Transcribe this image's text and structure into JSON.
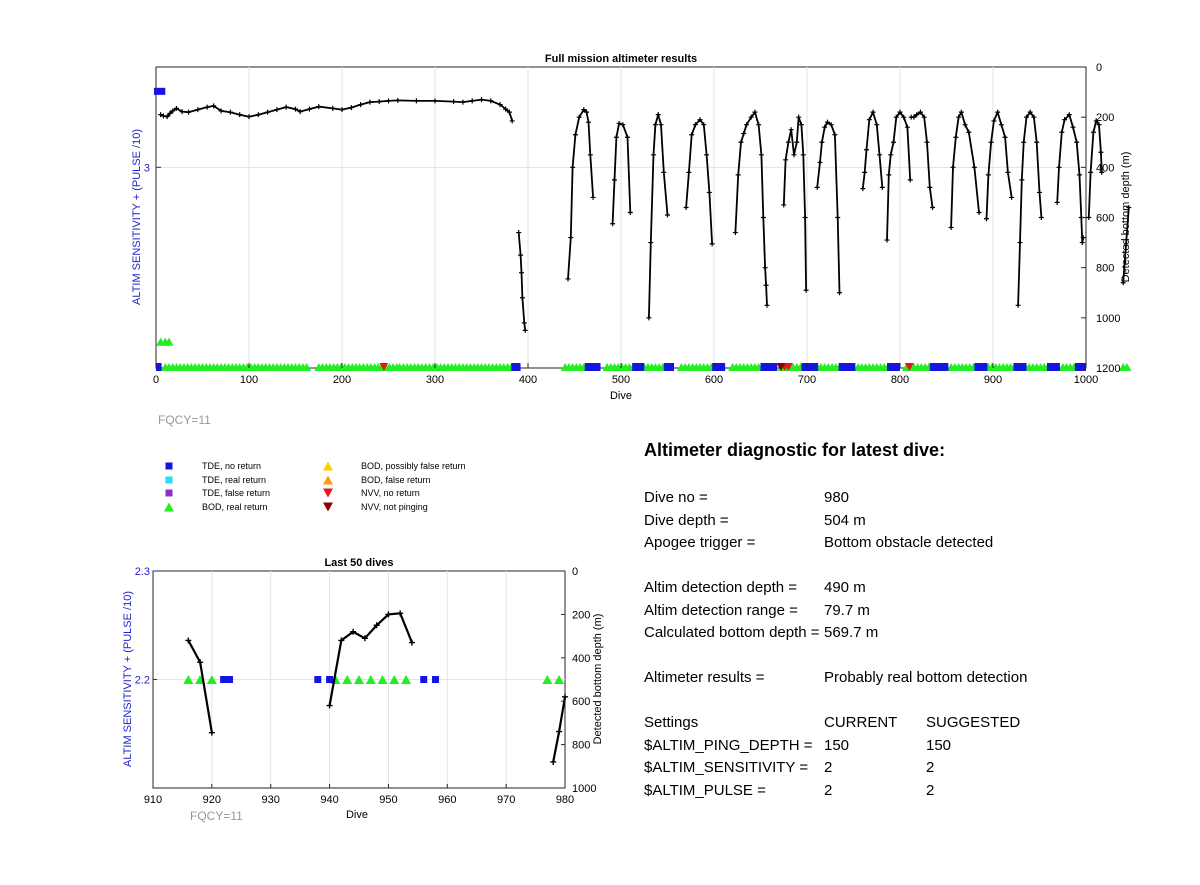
{
  "colors": {
    "tde_no_return": "#1515e0",
    "tde_real_return": "#26d7ff",
    "tde_false_return": "#8a32c8",
    "bod_real_return": "#22ee22",
    "bod_possibly_false": "#ffcc00",
    "bod_false_return": "#ff9a1a",
    "nvv_no_return": "#e8171d",
    "nvv_not_pinging": "#8b0000",
    "left_axis": "#2222cc",
    "fqcy": "#999999"
  },
  "legend": {
    "items": [
      {
        "label": "TDE, no return",
        "marker": "square-icon",
        "key": "tde_no_return"
      },
      {
        "label": "TDE, real return",
        "marker": "square-icon",
        "key": "tde_real_return"
      },
      {
        "label": "TDE, false return",
        "marker": "square-icon",
        "key": "tde_false_return"
      },
      {
        "label": "BOD, real return",
        "marker": "triangle-up-icon",
        "key": "bod_real_return"
      },
      {
        "label": "BOD, possibly false return",
        "marker": "triangle-up-icon",
        "key": "bod_possibly_false"
      },
      {
        "label": "BOD, false return",
        "marker": "triangle-up-icon",
        "key": "bod_false_return"
      },
      {
        "label": "NVV, no return",
        "marker": "triangle-down-icon",
        "key": "nvv_no_return"
      },
      {
        "label": "NVV, not pinging",
        "marker": "triangle-down-icon",
        "key": "nvv_not_pinging"
      }
    ]
  },
  "diagnostic": {
    "title": "Altimeter diagnostic for latest dive:",
    "dive_no_label": "Dive no =",
    "dive_no": "980",
    "dive_depth_label": "Dive depth =",
    "dive_depth": "504 m",
    "apogee_label": "Apogee trigger =",
    "apogee": "Bottom obstacle detected",
    "detection_depth_label": "Altim detection depth =",
    "detection_depth": "490 m",
    "detection_range_label": "Altim detection range =",
    "detection_range": "79.7 m",
    "bottom_depth_label": "Calculated bottom depth =",
    "bottom_depth": "569.7 m",
    "results_label": "Altimeter results =",
    "results": "Probably real bottom detection",
    "settings_label": "Settings",
    "current_label": "CURRENT",
    "suggested_label": "SUGGESTED",
    "settings": [
      {
        "name": "$ALTIM_PING_DEPTH =",
        "current": "150",
        "suggested": "150"
      },
      {
        "name": "$ALTIM_SENSITIVITY =",
        "current": "2",
        "suggested": "2"
      },
      {
        "name": "$ALTIM_PULSE =",
        "current": "2",
        "suggested": "2"
      }
    ]
  },
  "chart_data": [
    {
      "type": "line",
      "title": "Full mission altimeter results",
      "xlabel": "Dive",
      "ylabel": "ALTIM SENSITIVITY + (PULSE /10)",
      "ylabel_right": "Detected bottom depth (m)",
      "annotation": "FQCY=11",
      "xlim": [
        0,
        1000
      ],
      "xticks": [
        "0",
        "100",
        "200",
        "300",
        "400",
        "500",
        "600",
        "700",
        "800",
        "900",
        "1000"
      ],
      "yticks_left": [
        "3"
      ],
      "ylim_right": [
        1200,
        0
      ],
      "yticks_right": [
        "0",
        "200",
        "400",
        "600",
        "800",
        "1000",
        "1200"
      ],
      "grid": true,
      "bottom_depth_segments": [
        [
          [
            5,
            190
          ],
          [
            8,
            195
          ],
          [
            12,
            198
          ],
          [
            15,
            185
          ],
          [
            18,
            175
          ],
          [
            22,
            165
          ],
          [
            28,
            178
          ],
          [
            35,
            180
          ],
          [
            45,
            170
          ],
          [
            55,
            160
          ],
          [
            62,
            155
          ],
          [
            70,
            175
          ],
          [
            80,
            180
          ],
          [
            90,
            190
          ],
          [
            100,
            198
          ],
          [
            110,
            190
          ],
          [
            120,
            180
          ],
          [
            130,
            170
          ],
          [
            140,
            160
          ],
          [
            150,
            168
          ],
          [
            155,
            178
          ],
          [
            165,
            168
          ],
          [
            175,
            158
          ],
          [
            190,
            165
          ],
          [
            200,
            170
          ],
          [
            210,
            162
          ],
          [
            220,
            150
          ],
          [
            230,
            140
          ],
          [
            240,
            138
          ],
          [
            250,
            135
          ],
          [
            260,
            133
          ],
          [
            280,
            135
          ],
          [
            300,
            135
          ],
          [
            320,
            138
          ],
          [
            330,
            140
          ],
          [
            340,
            135
          ],
          [
            350,
            130
          ],
          [
            360,
            135
          ],
          [
            370,
            150
          ],
          [
            376,
            168
          ],
          [
            380,
            180
          ],
          [
            383,
            215
          ]
        ],
        [
          [
            390,
            660
          ],
          [
            392,
            750
          ],
          [
            393,
            820
          ],
          [
            394,
            920
          ],
          [
            396,
            1020
          ],
          [
            397,
            1050
          ]
        ],
        [
          [
            443,
            845
          ],
          [
            446,
            680
          ],
          [
            448,
            400
          ],
          [
            451,
            270
          ],
          [
            455,
            200
          ],
          [
            460,
            170
          ],
          [
            463,
            180
          ],
          [
            465,
            220
          ],
          [
            467,
            350
          ],
          [
            470,
            520
          ]
        ],
        [
          [
            491,
            625
          ],
          [
            493,
            450
          ],
          [
            495,
            280
          ],
          [
            498,
            225
          ],
          [
            502,
            230
          ],
          [
            507,
            280
          ],
          [
            510,
            580
          ]
        ],
        [
          [
            530,
            1000
          ],
          [
            532,
            700
          ],
          [
            535,
            350
          ],
          [
            537,
            230
          ],
          [
            540,
            190
          ],
          [
            543,
            230
          ],
          [
            546,
            420
          ],
          [
            550,
            590
          ]
        ],
        [
          [
            570,
            560
          ],
          [
            573,
            420
          ],
          [
            576,
            270
          ],
          [
            580,
            230
          ],
          [
            585,
            210
          ],
          [
            589,
            230
          ],
          [
            592,
            350
          ],
          [
            595,
            500
          ],
          [
            598,
            705
          ]
        ],
        [
          [
            623,
            660
          ],
          [
            626,
            430
          ],
          [
            629,
            300
          ],
          [
            632,
            265
          ],
          [
            635,
            230
          ],
          [
            640,
            200
          ],
          [
            644,
            180
          ],
          [
            648,
            230
          ],
          [
            651,
            350
          ],
          [
            653,
            600
          ],
          [
            655,
            800
          ],
          [
            656,
            870
          ],
          [
            657,
            950
          ]
        ],
        [
          [
            675,
            550
          ],
          [
            677,
            370
          ],
          [
            680,
            300
          ],
          [
            683,
            250
          ],
          [
            686,
            350
          ],
          [
            689,
            300
          ],
          [
            691,
            200
          ],
          [
            694,
            230
          ],
          [
            696,
            350
          ],
          [
            698,
            600
          ],
          [
            699,
            890
          ]
        ],
        [
          [
            711,
            480
          ],
          [
            714,
            380
          ],
          [
            716,
            300
          ],
          [
            719,
            240
          ],
          [
            722,
            220
          ],
          [
            726,
            230
          ],
          [
            730,
            270
          ],
          [
            733,
            600
          ],
          [
            735,
            900
          ]
        ],
        [
          [
            760,
            485
          ],
          [
            762,
            420
          ],
          [
            764,
            330
          ],
          [
            767,
            210
          ],
          [
            771,
            180
          ],
          [
            775,
            230
          ],
          [
            778,
            350
          ],
          [
            781,
            480
          ]
        ],
        [
          [
            786,
            690
          ],
          [
            788,
            430
          ],
          [
            790,
            350
          ],
          [
            793,
            300
          ],
          [
            796,
            200
          ],
          [
            800,
            180
          ],
          [
            804,
            200
          ],
          [
            808,
            240
          ],
          [
            811,
            450
          ]
        ],
        [
          [
            812,
            200
          ],
          [
            815,
            200
          ],
          [
            818,
            190
          ],
          [
            822,
            180
          ],
          [
            826,
            200
          ],
          [
            829,
            300
          ],
          [
            832,
            480
          ],
          [
            835,
            560
          ]
        ],
        [
          [
            855,
            640
          ],
          [
            857,
            400
          ],
          [
            860,
            280
          ],
          [
            863,
            200
          ],
          [
            866,
            180
          ],
          [
            870,
            230
          ],
          [
            874,
            260
          ],
          [
            880,
            400
          ],
          [
            885,
            580
          ]
        ],
        [
          [
            893,
            605
          ],
          [
            895,
            430
          ],
          [
            898,
            300
          ],
          [
            901,
            215
          ],
          [
            905,
            180
          ],
          [
            909,
            230
          ],
          [
            913,
            280
          ],
          [
            916,
            420
          ],
          [
            920,
            520
          ]
        ],
        [
          [
            927,
            950
          ],
          [
            929,
            700
          ],
          [
            931,
            450
          ],
          [
            933,
            300
          ],
          [
            936,
            200
          ],
          [
            940,
            180
          ],
          [
            944,
            200
          ],
          [
            947,
            300
          ],
          [
            950,
            500
          ],
          [
            952,
            600
          ]
        ],
        [
          [
            969,
            540
          ],
          [
            971,
            400
          ],
          [
            974,
            260
          ],
          [
            977,
            210
          ],
          [
            982,
            190
          ],
          [
            986,
            240
          ],
          [
            990,
            300
          ],
          [
            993,
            430
          ],
          [
            995,
            600
          ],
          [
            996,
            700
          ],
          [
            997,
            680
          ]
        ],
        [
          [
            1003,
            600
          ],
          [
            1005,
            420
          ],
          [
            1008,
            260
          ],
          [
            1011,
            215
          ],
          [
            1014,
            230
          ],
          [
            1016,
            340
          ],
          [
            1017,
            420
          ]
        ],
        [
          [
            1040,
            860
          ],
          [
            1043,
            710
          ],
          [
            1046,
            560
          ]
        ]
      ],
      "bod_real_return_ranges": [
        [
          10,
          165
        ],
        [
          175,
          260
        ],
        [
          262,
          385
        ],
        [
          440,
          470
        ],
        [
          485,
          515
        ],
        [
          525,
          550
        ],
        [
          565,
          600
        ],
        [
          620,
          655
        ],
        [
          673,
          700
        ],
        [
          711,
          740
        ],
        [
          755,
          790
        ],
        [
          807,
          835
        ],
        [
          855,
          885
        ],
        [
          895,
          925
        ],
        [
          935,
          960
        ],
        [
          975,
          990
        ],
        [
          1040,
          1046
        ]
      ],
      "tde_no_return_ranges": [
        [
          0,
          6
        ],
        [
          382,
          392
        ],
        [
          461,
          478
        ],
        [
          512,
          525
        ],
        [
          546,
          557
        ],
        [
          598,
          612
        ],
        [
          650,
          668
        ],
        [
          694,
          712
        ],
        [
          734,
          752
        ],
        [
          786,
          800
        ],
        [
          832,
          852
        ],
        [
          880,
          894
        ],
        [
          922,
          936
        ],
        [
          958,
          972
        ],
        [
          988,
          1000
        ]
      ],
      "tde_no_return_top": [
        0,
        10
      ],
      "bod_markers_top": [
        5,
        10,
        14
      ],
      "nvv_no_return": [
        245,
        676,
        680,
        810
      ],
      "nvv_not_pinging": [
        672
      ]
    },
    {
      "type": "line",
      "title": "Last 50 dives",
      "xlabel": "Dive",
      "ylabel": "ALTIM SENSITIVITY + (PULSE /10)",
      "ylabel_right": "Detected bottom depth (m)",
      "annotation": "FQCY=11",
      "xlim": [
        910,
        980
      ],
      "xticks": [
        "910",
        "920",
        "930",
        "940",
        "950",
        "960",
        "970",
        "980"
      ],
      "ylim_left": [
        2.1,
        2.3
      ],
      "yticks_left": [
        "2.3",
        "2.2"
      ],
      "ylim_right": [
        1000,
        0
      ],
      "yticks_right": [
        "0",
        "200",
        "400",
        "600",
        "800",
        "1000"
      ],
      "grid": true,
      "bottom_depth_segments": [
        [
          [
            916,
            320
          ],
          [
            918,
            420
          ],
          [
            920,
            745
          ]
        ],
        [
          [
            940,
            620
          ],
          [
            942,
            320
          ],
          [
            944,
            280
          ],
          [
            946,
            310
          ],
          [
            948,
            250
          ],
          [
            950,
            200
          ],
          [
            952,
            195
          ],
          [
            954,
            330
          ]
        ],
        [
          [
            978,
            880
          ],
          [
            979,
            740
          ],
          [
            980,
            580
          ]
        ]
      ],
      "bod_real_return": [
        916,
        918,
        920,
        941,
        943,
        945,
        947,
        949,
        951,
        953,
        977,
        979
      ],
      "tde_no_return": [
        922,
        923,
        938,
        940,
        956,
        958
      ]
    }
  ]
}
